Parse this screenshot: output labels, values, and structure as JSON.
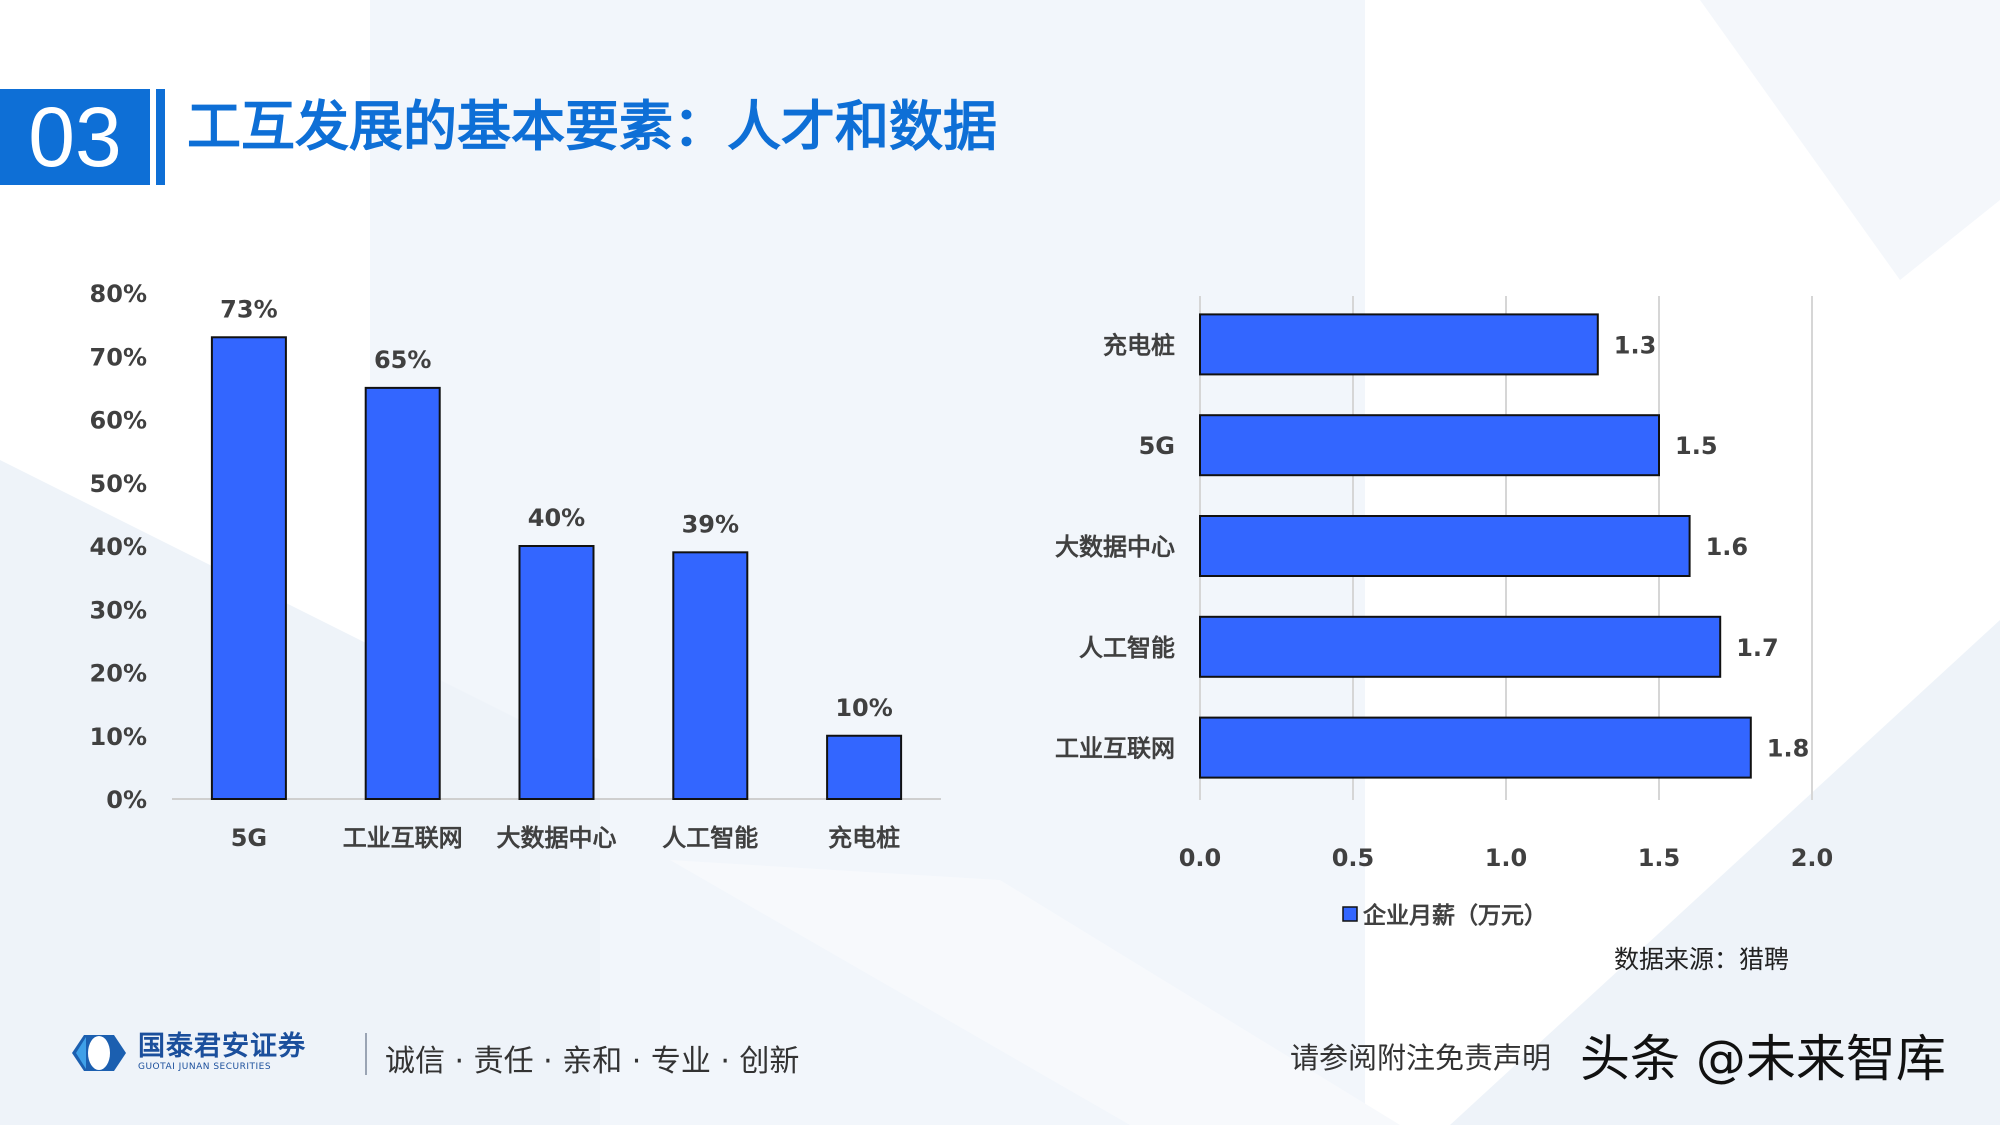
{
  "header": {
    "section_number": "03",
    "title": "工互发展的基本要素：人才和数据"
  },
  "colors": {
    "accent": "#0e6fd6",
    "bar": "#3366ff",
    "text": "#404040"
  },
  "chart_data": [
    {
      "type": "bar",
      "orientation": "vertical",
      "categories": [
        "5G",
        "工业互联网",
        "大数据中心",
        "人工智能",
        "充电桩"
      ],
      "values": [
        73,
        65,
        40,
        39,
        10
      ],
      "data_labels": [
        "73%",
        "65%",
        "40%",
        "39%",
        "10%"
      ],
      "yticks": [
        "0%",
        "10%",
        "20%",
        "30%",
        "40%",
        "50%",
        "60%",
        "70%",
        "80%"
      ],
      "ylim": [
        0,
        80
      ],
      "grid": false
    },
    {
      "type": "bar",
      "orientation": "horizontal",
      "categories": [
        "充电桩",
        "5G",
        "大数据中心",
        "人工智能",
        "工业互联网"
      ],
      "values": [
        1.3,
        1.5,
        1.6,
        1.7,
        1.8
      ],
      "data_labels": [
        "1.3",
        "1.5",
        "1.6",
        "1.7",
        "1.8"
      ],
      "xticks": [
        "0.0",
        "0.5",
        "1.0",
        "1.5",
        "2.0"
      ],
      "xlim": [
        0,
        2.0
      ],
      "grid": true,
      "legend": {
        "position": "bottom",
        "entries": [
          "企业月薪（万元）"
        ]
      }
    }
  ],
  "source": "数据来源：猎聘",
  "footer": {
    "logo_cn": "国泰君安证券",
    "logo_en": "GUOTAI JUNAN SECURITIES",
    "slogan": "诚信 · 责任 · 亲和 · 专业 · 创新",
    "disclaimer": "请参阅附注免责声明",
    "watermark": "头条 @未来智库"
  }
}
